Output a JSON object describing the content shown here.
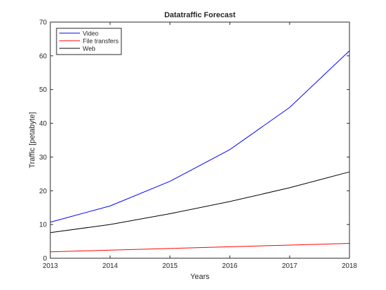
{
  "chart_data": {
    "type": "line",
    "title": "Datatraffic Forecast",
    "xlabel": "Years",
    "ylabel": "Traffic [petabyte]",
    "x": [
      2013,
      2014,
      2015,
      2016,
      2017,
      2018
    ],
    "xlim": [
      2013,
      2018
    ],
    "ylim": [
      0,
      70
    ],
    "xticks": [
      "2013",
      "2014",
      "2015",
      "2016",
      "2017",
      "2018"
    ],
    "yticks": [
      "0",
      "10",
      "20",
      "30",
      "40",
      "50",
      "60",
      "70"
    ],
    "grid": false,
    "legend_position": "top-left",
    "series": [
      {
        "name": "Video",
        "color": "#0000ff",
        "values": [
          10.7,
          15.5,
          22.8,
          32.2,
          44.7,
          61.5
        ]
      },
      {
        "name": "File transfers",
        "color": "#ff0000",
        "values": [
          1.9,
          2.4,
          2.9,
          3.4,
          3.9,
          4.4
        ]
      },
      {
        "name": "Web",
        "color": "#000000",
        "values": [
          7.6,
          10.0,
          13.2,
          16.8,
          20.9,
          25.6
        ]
      }
    ]
  }
}
